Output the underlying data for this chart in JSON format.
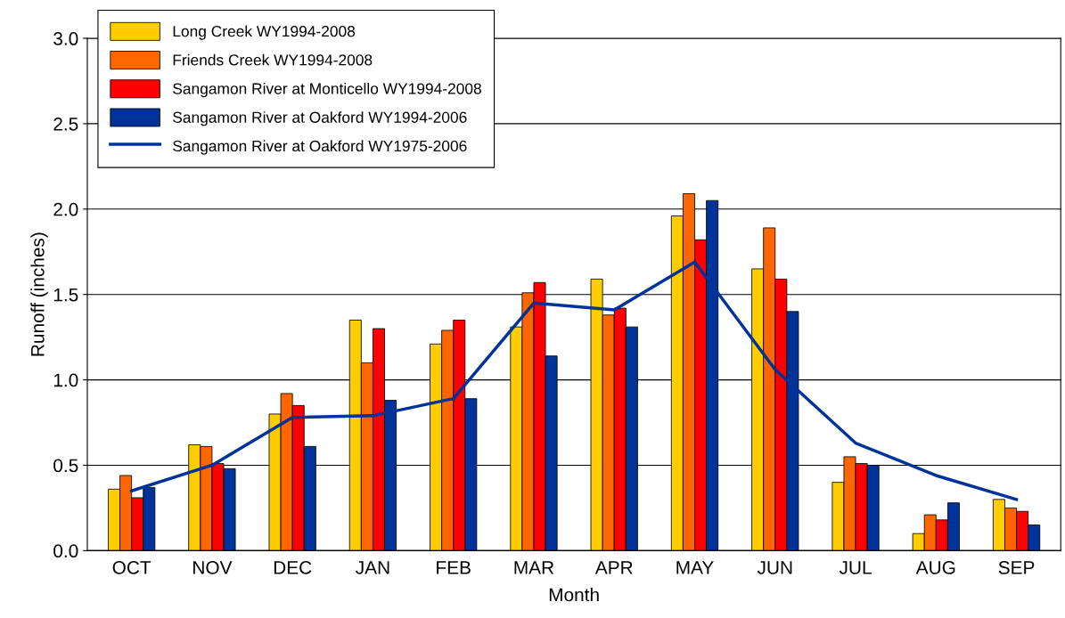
{
  "chart_data": {
    "type": "bar",
    "xlabel": "Month",
    "ylabel": "Runoff (inches)",
    "categories": [
      "OCT",
      "NOV",
      "DEC",
      "JAN",
      "FEB",
      "MAR",
      "APR",
      "MAY",
      "JUN",
      "JUL",
      "AUG",
      "SEP"
    ],
    "series": [
      {
        "name": "Long Creek WY1994-2008",
        "color": "#ffcc00",
        "values": [
          0.36,
          0.62,
          0.8,
          1.35,
          1.21,
          1.31,
          1.59,
          1.96,
          1.65,
          0.4,
          0.1,
          0.3
        ]
      },
      {
        "name": "Friends Creek WY1994-2008",
        "color": "#ff6600",
        "values": [
          0.44,
          0.61,
          0.92,
          1.1,
          1.29,
          1.51,
          1.38,
          2.09,
          1.89,
          0.55,
          0.21,
          0.25
        ]
      },
      {
        "name": "Sangamon River at Monticello WY1994-2008",
        "color": "#ff0000",
        "values": [
          0.31,
          0.51,
          0.85,
          1.3,
          1.35,
          1.57,
          1.42,
          1.82,
          1.59,
          0.51,
          0.18,
          0.23
        ]
      },
      {
        "name": "Sangamon River at Oakford WY1994-2006",
        "color": "#003399",
        "values": [
          0.37,
          0.48,
          0.61,
          0.88,
          0.89,
          1.14,
          1.31,
          2.05,
          1.4,
          0.5,
          0.28,
          0.15
        ]
      },
      {
        "name": "Sangamon River at Oakford WY1975-2006",
        "color": "#003399",
        "type": "line",
        "marker": "none",
        "values": [
          0.35,
          0.5,
          0.78,
          0.79,
          0.89,
          1.45,
          1.41,
          1.69,
          1.06,
          0.63,
          0.44,
          0.3
        ]
      }
    ],
    "ylim": [
      0,
      3.0
    ],
    "yticks": [
      {
        "value": 0,
        "label": "0.0"
      },
      0.5,
      {
        "value": 1,
        "label": "1.0"
      },
      1.5,
      {
        "value": 2,
        "label": "2.0"
      },
      2.5,
      {
        "value": 3,
        "label": "3.0"
      }
    ],
    "grid": "y",
    "legend": "top left"
  }
}
